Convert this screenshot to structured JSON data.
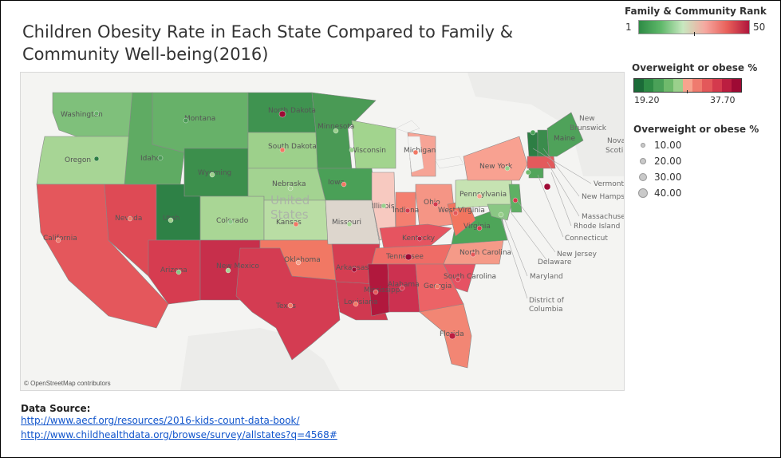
{
  "title": "Children Obesity Rate in Each State Compared to Family & Community Well-being(2016)",
  "legend_rank": {
    "title": "Family & Community Rank",
    "min": "1",
    "max": "50"
  },
  "legend_color": {
    "title": "Overweight or obese %",
    "min": "19.20",
    "max": "37.70",
    "colors": [
      "#1b6b38",
      "#2e8b45",
      "#4aa158",
      "#6fba6c",
      "#9ad08c",
      "#f7a48e",
      "#ef7b6e",
      "#e3585a",
      "#d43a4d",
      "#bb1e40",
      "#9e0a34"
    ]
  },
  "legend_size": {
    "title": "Overweight or obese %",
    "items": [
      "10.00",
      "20.00",
      "30.00",
      "40.00"
    ]
  },
  "map": {
    "attribution": "© OpenStreetMap contributors",
    "country_label": [
      "United",
      "States"
    ],
    "callouts": [
      "Vermont",
      "New Hamps",
      "Massachuse",
      "Rhode Island",
      "Connecticut",
      "New Jersey",
      "Delaware",
      "Maryland",
      "District of",
      "Columbia"
    ],
    "outside_labels": [
      "New",
      "Brunswick",
      "Nova",
      "Scoti"
    ],
    "state_labels": [
      "Washington",
      "Oregon",
      "Idaho",
      "Montana",
      "Wyoming",
      "Nevada",
      "California",
      "Utah",
      "Colorado",
      "Arizona",
      "New Mexico",
      "North Dakota",
      "South Dakota",
      "Nebraska",
      "Kansas",
      "Oklahoma",
      "Texas",
      "Minnesota",
      "Iowa",
      "Missouri",
      "Arkansas",
      "Louisiana",
      "Wisconsin",
      "Illinois",
      "Michigan",
      "Indiana",
      "Ohio",
      "Kentucky",
      "Tennessee",
      "Mississippi",
      "Alabama",
      "Georgia",
      "Florida",
      "South Carolina",
      "North Carolina",
      "Virginia",
      "West Virginia",
      "Pennsylvania",
      "New York",
      "Maine"
    ]
  },
  "data_source": {
    "label": "Data Source:",
    "links": [
      "http://www.aecf.org/resources/2016-kids-count-data-book/",
      "http://www.childhealthdata.org/browse/survey/allstates?q=4568#"
    ]
  }
}
